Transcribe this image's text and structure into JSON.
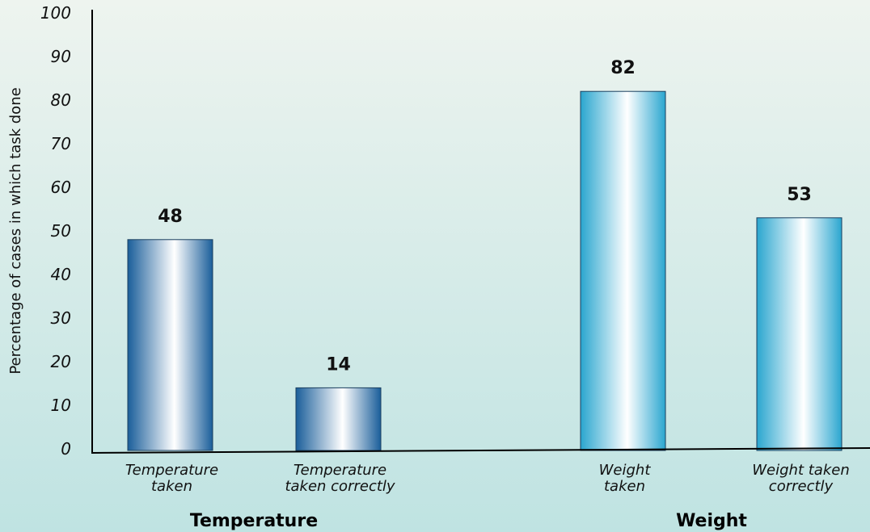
{
  "chart_data": {
    "type": "bar",
    "title": "",
    "ylabel": "Percentage of cases in which task done",
    "ylim": [
      0,
      100
    ],
    "yticks": [
      "0",
      "10",
      "20",
      "30",
      "40",
      "50",
      "60",
      "70",
      "80",
      "90",
      "100"
    ],
    "grid": false,
    "categories": [
      {
        "label": [
          "Temperature",
          "taken"
        ],
        "value": 48,
        "value_label": "48",
        "group": "Temperature",
        "color_scheme": "dark-blue"
      },
      {
        "label": [
          "Temperature",
          "taken correctly"
        ],
        "value": 14,
        "value_label": "14",
        "group": "Temperature",
        "color_scheme": "dark-blue"
      },
      {
        "label": [
          "Weight",
          "taken"
        ],
        "value": 82,
        "value_label": "82",
        "group": "Weight",
        "color_scheme": "light-cyan"
      },
      {
        "label": [
          "Weight taken",
          "correctly"
        ],
        "value": 53,
        "value_label": "53",
        "group": "Weight",
        "color_scheme": "light-cyan"
      }
    ],
    "groups": [
      "Temperature",
      "Weight"
    ]
  },
  "colors": {
    "background_top": "#eef4ef",
    "background_bottom": "#bfe3e2",
    "dark_bar_edge": "#1a5e9a",
    "dark_bar_center": "#ffffff",
    "light_bar_edge": "#2aa6cf",
    "light_bar_center": "#ffffff",
    "axis": "#000000"
  }
}
